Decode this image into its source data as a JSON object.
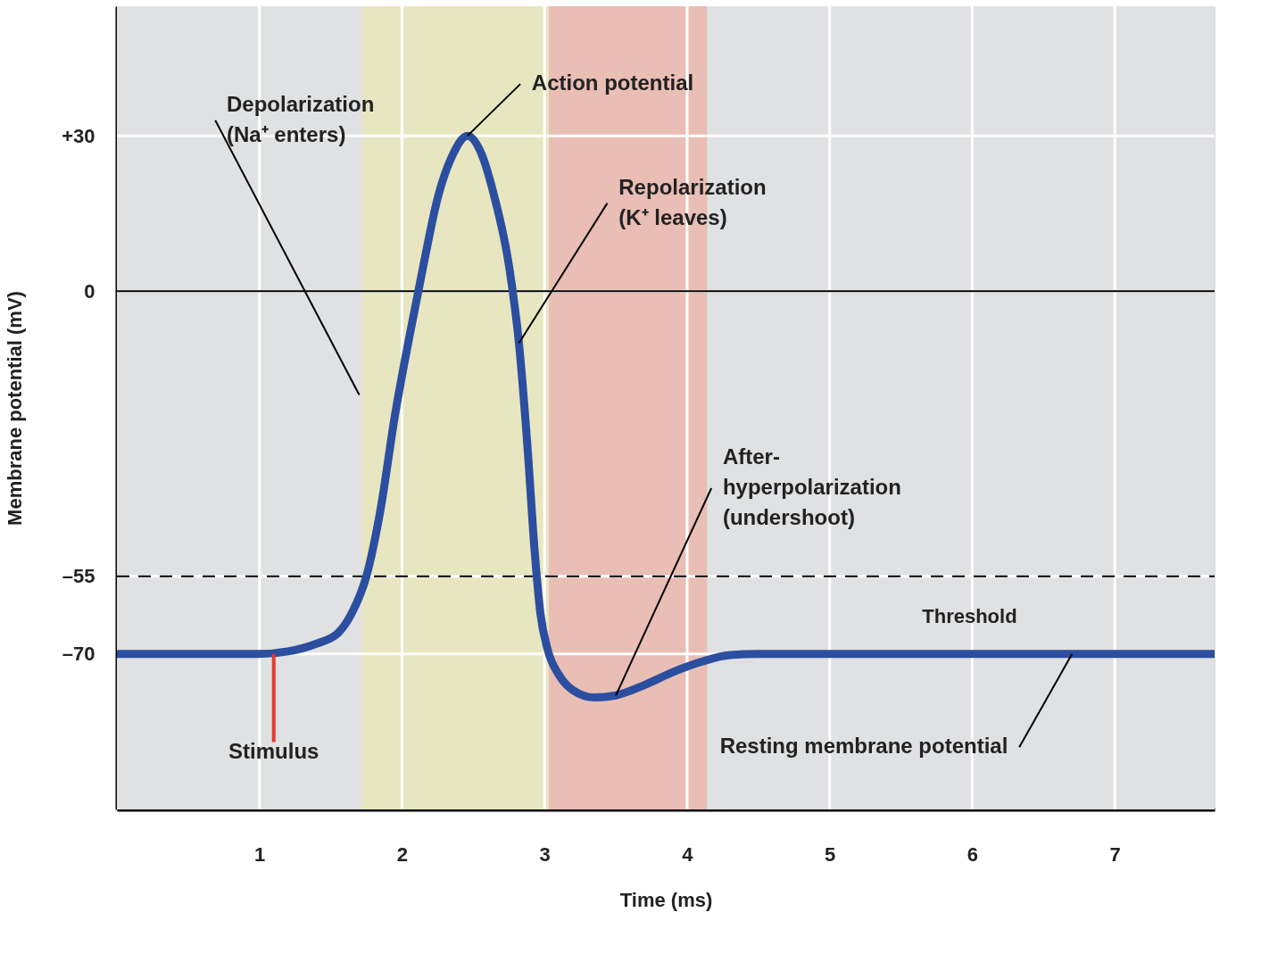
{
  "chart_data": {
    "type": "line",
    "xlabel": "Time (ms)",
    "ylabel": "Membrane potential (mV)",
    "x": [
      0,
      1.0,
      1.2,
      1.4,
      1.55,
      1.65,
      1.75,
      1.85,
      1.95,
      2.05,
      2.15,
      2.25,
      2.35,
      2.46,
      2.55,
      2.65,
      2.75,
      2.82,
      2.88,
      2.93,
      2.97,
      3.02,
      3.1,
      3.2,
      3.35,
      3.5,
      3.7,
      3.9,
      4.1,
      4.3,
      4.5,
      7.7
    ],
    "series": [
      {
        "color": "#2b4ea0",
        "values": [
          -70,
          -70,
          -69.5,
          -68,
          -66,
          -62,
          -55,
          -42,
          -24,
          -9,
          5,
          18,
          26,
          30,
          27,
          18,
          5,
          -10,
          -30,
          -50,
          -62,
          -69,
          -74,
          -77,
          -78.4,
          -78,
          -76,
          -73.5,
          -71.5,
          -70.2,
          -70,
          -70
        ]
      }
    ],
    "xlim": [
      0,
      7.7
    ],
    "ylim": [
      -100,
      55
    ],
    "xticks": [
      1,
      2,
      3,
      4,
      5,
      6,
      7
    ],
    "yticks": [
      {
        "value": 30,
        "label": "+30"
      },
      0,
      {
        "value": -55,
        "label": "–55"
      },
      {
        "value": -70,
        "label": "–70"
      }
    ],
    "grid": true,
    "marker": "none",
    "line_style": "solid",
    "bands": [
      {
        "axis": "x",
        "from": 1.72,
        "to": 3.03,
        "color": "#e8e6c0"
      },
      {
        "axis": "x",
        "from": 3.03,
        "to": 4.14,
        "color": "#e9beb5"
      }
    ],
    "ref_lines": [
      {
        "axis": "y",
        "value": 0,
        "color": "#000000",
        "line_style": "solid"
      },
      {
        "axis": "y",
        "value": -55,
        "label": "Threshold",
        "color": "#000000",
        "line_style": "dashed"
      }
    ],
    "annotations": [
      {
        "text": "Depolarization (Na⁺ enters)",
        "x": 1.7,
        "y": -20
      },
      {
        "text": "Action potential",
        "x": 2.46,
        "y": 30
      },
      {
        "text": "Repolarization (K⁺ leaves)",
        "x": 2.82,
        "y": -10
      },
      {
        "text": "After-hyperpolarization (undershoot)",
        "x": 3.5,
        "y": -78
      },
      {
        "text": "Resting membrane potential",
        "x": 6.7,
        "y": -70
      },
      {
        "text": "Stimulus",
        "x": 1.1,
        "y": -70
      }
    ]
  }
}
